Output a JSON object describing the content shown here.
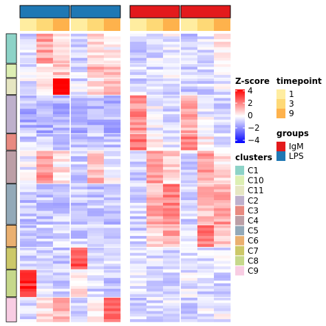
{
  "chart_data": {
    "type": "heatmap",
    "title": "",
    "groups": [
      {
        "name": "LPS",
        "color": "#1F78B4"
      },
      {
        "name": "LPS",
        "color": "#1F78B4"
      },
      {
        "name": "IgM",
        "color": "#E31A1C"
      },
      {
        "name": "IgM",
        "color": "#E31A1C"
      }
    ],
    "timepoints_per_block": [
      "1",
      "3",
      "9"
    ],
    "clusters": [
      "C1",
      "C10",
      "C11",
      "C2",
      "C3",
      "C4",
      "C5",
      "C6",
      "C7",
      "C8",
      "C9"
    ],
    "row_clusters": [
      {
        "cluster": "C1",
        "rows": 11
      },
      {
        "cluster": "C10",
        "rows": 5
      },
      {
        "cluster": "C11",
        "rows": 6
      },
      {
        "cluster": "C2",
        "rows": 14
      },
      {
        "cluster": "C3",
        "rows": 6
      },
      {
        "cluster": "C4",
        "rows": 12
      },
      {
        "cluster": "C5",
        "rows": 15
      },
      {
        "cluster": "C6",
        "rows": 8
      },
      {
        "cluster": "C7",
        "rows": 8
      },
      {
        "cluster": "C8",
        "rows": 10
      },
      {
        "cluster": "C9",
        "rows": 9
      }
    ],
    "cluster_pattern_zscore": {
      "C1": [
        -0.4,
        1.2,
        0.6,
        -0.5,
        0.6,
        0.2,
        -0.6,
        -0.4,
        -0.2,
        -0.6,
        -0.4,
        0.2
      ],
      "C10": [
        -0.4,
        0.4,
        0.8,
        -0.4,
        1.0,
        0.6,
        -0.5,
        -0.5,
        -0.3,
        -0.5,
        -0.4,
        -0.2
      ],
      "C11": [
        -0.3,
        0.3,
        3.5,
        -0.4,
        0.3,
        0.8,
        -0.5,
        -0.5,
        -0.4,
        -0.6,
        -0.5,
        -0.3
      ],
      "C2": [
        -0.9,
        -0.9,
        -0.9,
        -0.9,
        -0.9,
        -0.9,
        1.4,
        -0.2,
        -0.6,
        1.0,
        -0.2,
        -0.6
      ],
      "C3": [
        -0.6,
        -0.6,
        -0.7,
        -0.6,
        -0.6,
        -0.7,
        1.8,
        0.3,
        -0.3,
        1.6,
        0.2,
        -0.4
      ],
      "C4": [
        -0.2,
        1.3,
        0.3,
        -0.6,
        0.9,
        -0.2,
        -0.7,
        1.4,
        0.5,
        -0.6,
        1.2,
        0.4
      ],
      "C5": [
        -0.7,
        -0.7,
        -0.7,
        -0.7,
        -0.7,
        -0.7,
        -0.6,
        1.0,
        1.6,
        -0.6,
        0.8,
        1.2
      ],
      "C6": [
        -0.6,
        -0.6,
        -0.5,
        -0.6,
        -0.6,
        -0.5,
        -0.5,
        0.4,
        1.0,
        -0.5,
        1.6,
        0.6
      ],
      "C7": [
        -0.5,
        -0.5,
        -0.6,
        2.2,
        -0.3,
        -0.5,
        -0.4,
        -0.4,
        -0.4,
        -0.5,
        -0.5,
        -0.4
      ],
      "C8": [
        2.6,
        -0.3,
        -0.6,
        0.2,
        -0.5,
        -0.6,
        -0.4,
        -0.5,
        -0.5,
        -0.3,
        -0.5,
        -0.5
      ],
      "C9": [
        -0.5,
        0.4,
        0.9,
        -0.5,
        0.3,
        2.0,
        -0.5,
        -0.4,
        -0.3,
        -0.5,
        -0.3,
        -0.2
      ]
    },
    "cluster_colors": {
      "C1": "#8DD3C7",
      "C10": "#DDEFB3",
      "C11": "#E6E6C2",
      "C2": "#BEB0CC",
      "C3": "#E88A80",
      "C4": "#BC9FA6",
      "C5": "#93A9B8",
      "C6": "#EAB070",
      "C7": "#CCC869",
      "C8": "#C6D88B",
      "C9": "#F8CDE3"
    },
    "timepoint_colors": {
      "1": "#FFEDA0",
      "3": "#FED976",
      "9": "#FEB24C"
    },
    "zscore_scale": {
      "title": "Z-score",
      "ticks": [
        "4",
        "2",
        "0",
        "−2",
        "−4"
      ],
      "range": [
        -4,
        4
      ],
      "colors": {
        "low": "#0000FF",
        "mid": "#FFFFFF",
        "high": "#FF0000"
      }
    },
    "legends": {
      "timepoint": {
        "title": "timepoint",
        "items": [
          "1",
          "3",
          "9"
        ]
      },
      "groups": {
        "title": "groups",
        "items": [
          {
            "label": "IgM",
            "color": "#E31A1C"
          },
          {
            "label": "LPS",
            "color": "#1F78B4"
          }
        ]
      },
      "clusters": {
        "title": "clusters",
        "items": [
          "C1",
          "C10",
          "C11",
          "C2",
          "C3",
          "C4",
          "C5",
          "C6",
          "C7",
          "C8",
          "C9"
        ]
      }
    },
    "grid": false
  }
}
